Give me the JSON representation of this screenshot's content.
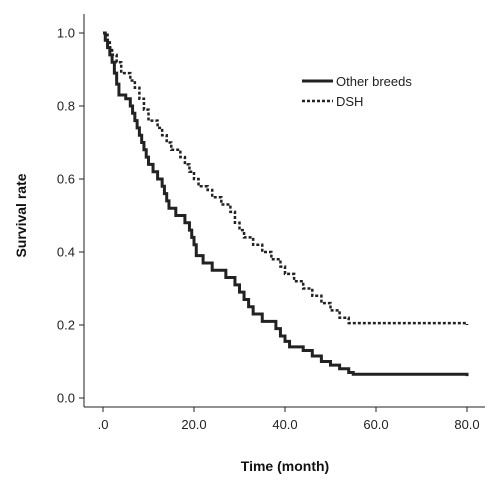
{
  "chart_data": {
    "type": "line",
    "title": "",
    "xlabel": "Time (month)",
    "ylabel": "Survival rate",
    "xlim": [
      0,
      80
    ],
    "ylim": [
      0,
      1.0
    ],
    "grid": false,
    "legend_placement": "top-right",
    "x_ticks": [
      0,
      20,
      40,
      60,
      80
    ],
    "x_tick_labels": [
      ".0",
      "20.0",
      "40.0",
      "60.0",
      "80.0"
    ],
    "y_ticks": [
      0,
      0.2,
      0.4,
      0.6,
      0.8,
      1.0
    ],
    "y_tick_labels": [
      "0.0",
      "0.2",
      "0.4",
      "0.6",
      "0.8",
      "1.0"
    ],
    "series": [
      {
        "name": "Other breeds",
        "style": "solid",
        "color": "#222222",
        "points": [
          [
            0,
            1.0
          ],
          [
            0.5,
            0.98
          ],
          [
            1,
            0.96
          ],
          [
            1.5,
            0.94
          ],
          [
            2,
            0.92
          ],
          [
            2.5,
            0.89
          ],
          [
            3,
            0.86
          ],
          [
            3.5,
            0.83
          ],
          [
            5,
            0.82
          ],
          [
            6,
            0.8
          ],
          [
            6.5,
            0.78
          ],
          [
            7,
            0.76
          ],
          [
            7.5,
            0.74
          ],
          [
            8,
            0.72
          ],
          [
            8.5,
            0.7
          ],
          [
            9,
            0.68
          ],
          [
            9.5,
            0.66
          ],
          [
            10,
            0.64
          ],
          [
            11,
            0.62
          ],
          [
            12,
            0.6
          ],
          [
            13,
            0.58
          ],
          [
            13.5,
            0.56
          ],
          [
            14,
            0.54
          ],
          [
            14.5,
            0.52
          ],
          [
            16,
            0.5
          ],
          [
            18,
            0.48
          ],
          [
            19,
            0.46
          ],
          [
            19.5,
            0.44
          ],
          [
            20,
            0.42
          ],
          [
            20.5,
            0.39
          ],
          [
            22,
            0.37
          ],
          [
            24,
            0.35
          ],
          [
            27,
            0.33
          ],
          [
            29,
            0.31
          ],
          [
            30,
            0.29
          ],
          [
            31,
            0.27
          ],
          [
            32,
            0.25
          ],
          [
            33,
            0.23
          ],
          [
            35,
            0.21
          ],
          [
            38,
            0.19
          ],
          [
            39,
            0.17
          ],
          [
            40,
            0.155
          ],
          [
            41,
            0.14
          ],
          [
            44,
            0.13
          ],
          [
            46,
            0.115
          ],
          [
            48,
            0.1
          ],
          [
            50,
            0.09
          ],
          [
            52,
            0.08
          ],
          [
            54,
            0.07
          ],
          [
            55,
            0.065
          ],
          [
            80,
            0.06
          ]
        ]
      },
      {
        "name": "DSH",
        "style": "dotted",
        "color": "#222222",
        "points": [
          [
            0,
            1.0
          ],
          [
            1,
            0.98
          ],
          [
            1.5,
            0.96
          ],
          [
            2,
            0.94
          ],
          [
            3,
            0.92
          ],
          [
            4,
            0.89
          ],
          [
            6,
            0.87
          ],
          [
            7,
            0.85
          ],
          [
            8,
            0.82
          ],
          [
            9,
            0.79
          ],
          [
            10,
            0.76
          ],
          [
            12,
            0.74
          ],
          [
            13,
            0.72
          ],
          [
            14,
            0.7
          ],
          [
            15,
            0.68
          ],
          [
            17,
            0.66
          ],
          [
            18,
            0.64
          ],
          [
            19,
            0.62
          ],
          [
            20,
            0.6
          ],
          [
            21,
            0.58
          ],
          [
            23,
            0.57
          ],
          [
            24,
            0.55
          ],
          [
            26,
            0.53
          ],
          [
            28,
            0.51
          ],
          [
            29,
            0.48
          ],
          [
            30,
            0.46
          ],
          [
            31,
            0.44
          ],
          [
            33,
            0.42
          ],
          [
            35,
            0.4
          ],
          [
            37,
            0.38
          ],
          [
            39,
            0.36
          ],
          [
            40,
            0.34
          ],
          [
            42,
            0.32
          ],
          [
            44,
            0.3
          ],
          [
            46,
            0.28
          ],
          [
            48,
            0.26
          ],
          [
            50,
            0.24
          ],
          [
            52,
            0.22
          ],
          [
            54,
            0.205
          ],
          [
            80,
            0.2
          ]
        ]
      }
    ]
  }
}
